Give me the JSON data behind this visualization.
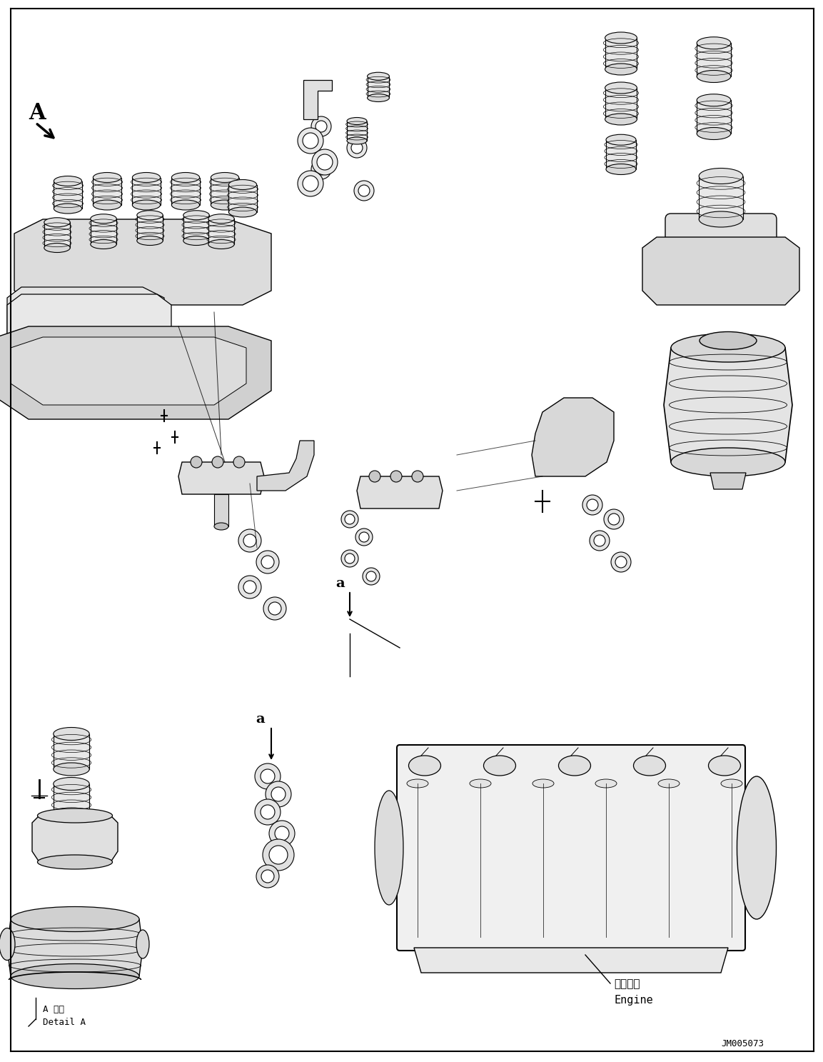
{
  "title": "",
  "background_color": "#ffffff",
  "fig_width": 11.53,
  "fig_height": 14.87,
  "dpi": 100,
  "label_A": "A",
  "label_a1": "a",
  "label_a2": "a",
  "label_detail_A_jp": "A 詳細",
  "label_detail_A_en": "Detail A",
  "label_engine_jp": "エンジン",
  "label_engine_en": "Engine",
  "label_JM": "JM005073",
  "text_color": "#000000",
  "line_color": "#000000",
  "part_fill": "#f0f0f0",
  "part_edge": "#000000"
}
